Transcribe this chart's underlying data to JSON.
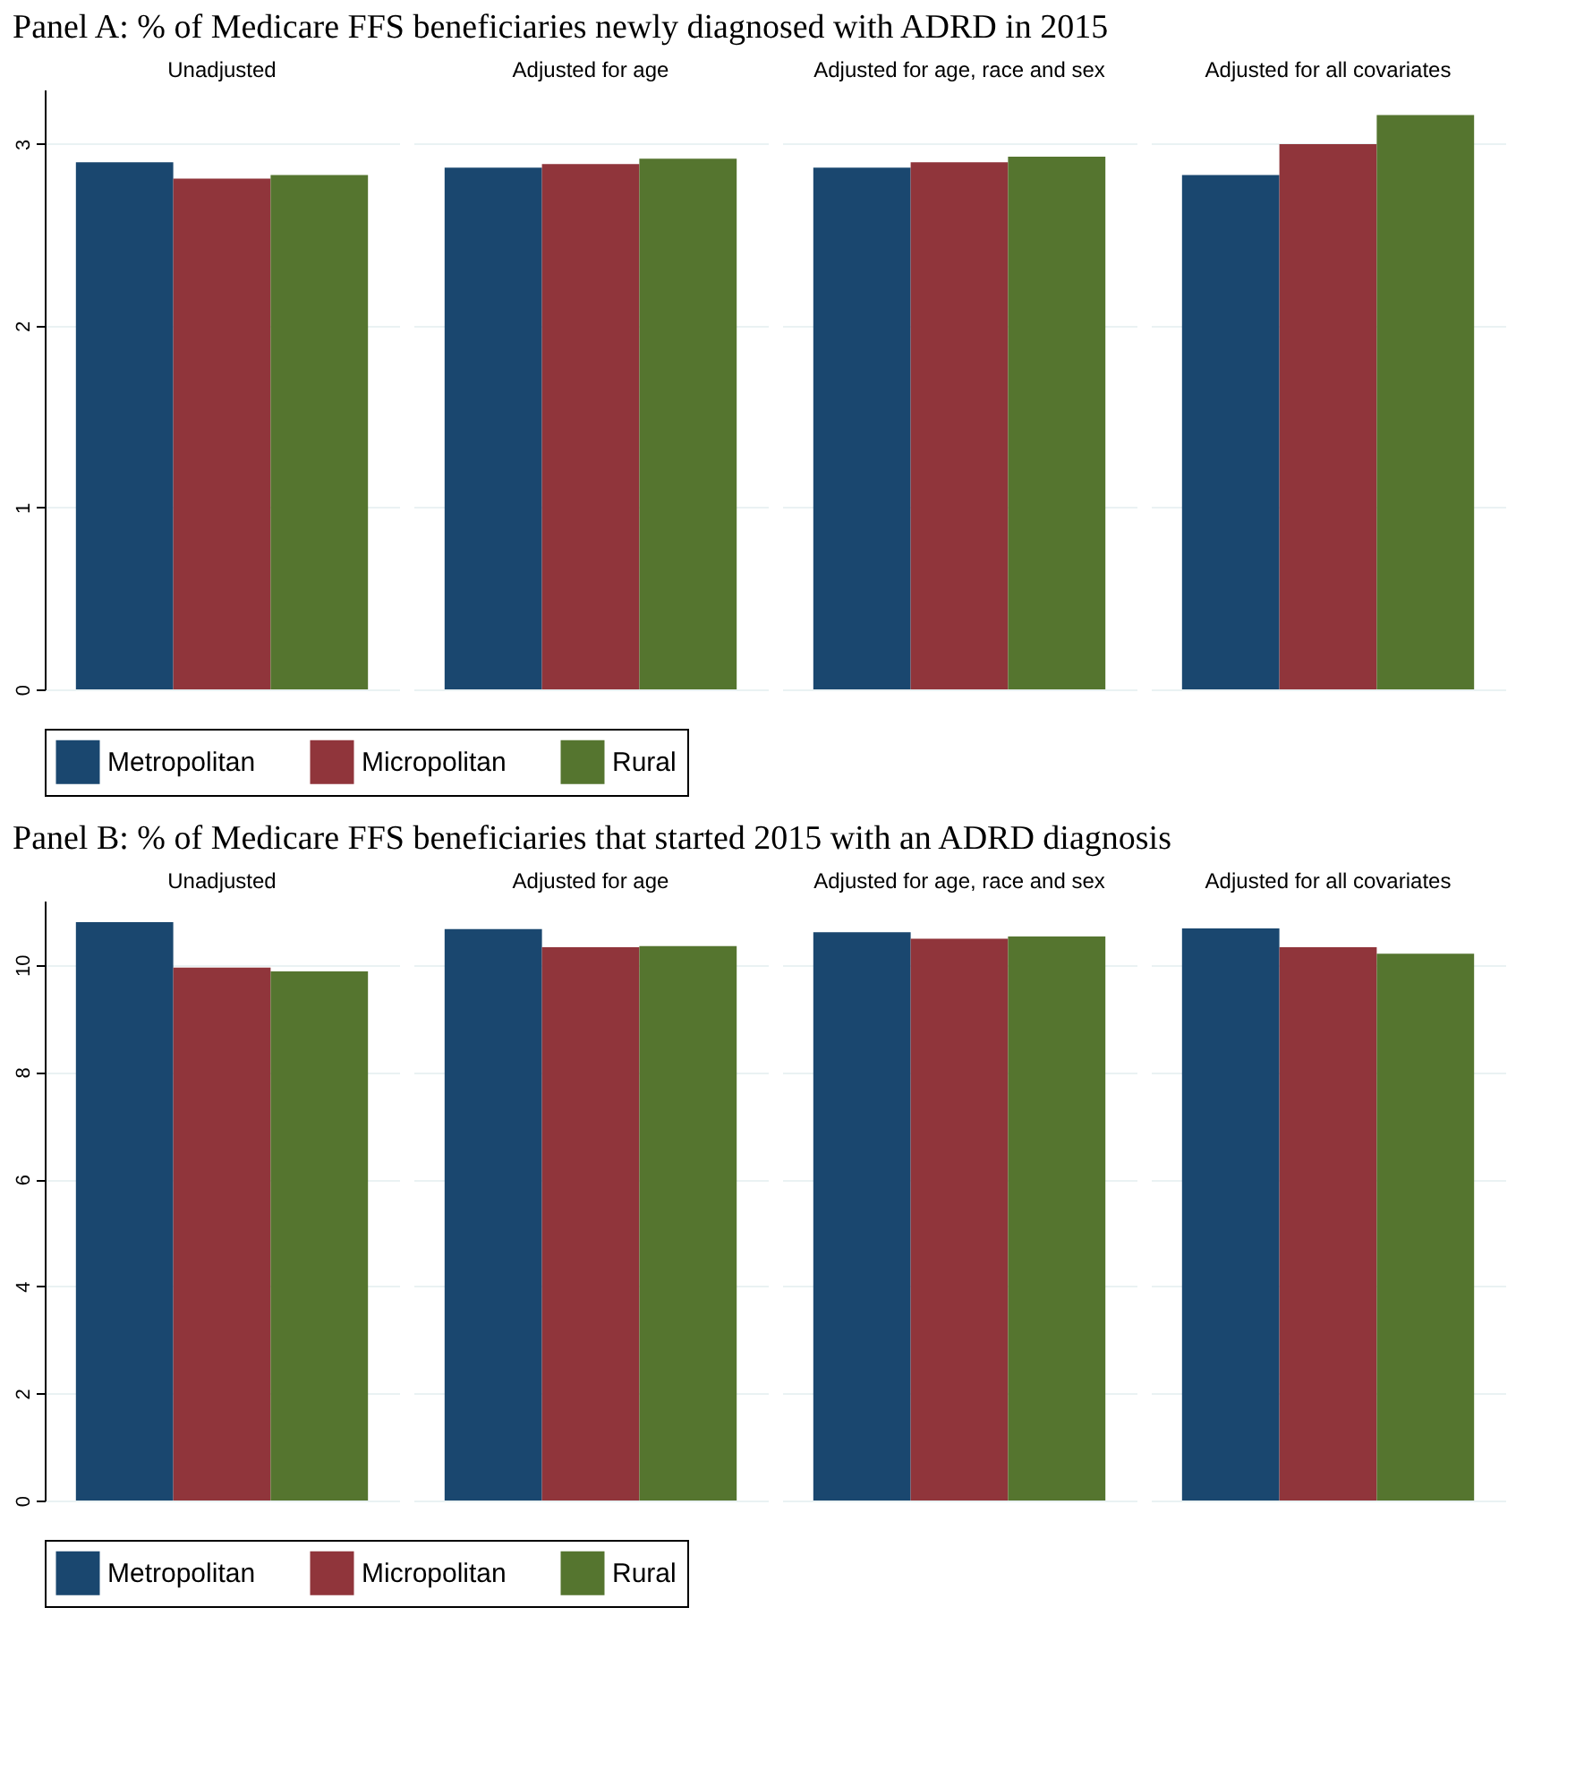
{
  "chart_data": [
    {
      "type": "bar",
      "title": "Panel A: % of Medicare FFS beneficiaries newly diagnosed with ADRD in 2015",
      "categories": [
        "Unadjusted",
        "Adjusted for age",
        "Adjusted for age, race and sex",
        "Adjusted for all covariates"
      ],
      "series": [
        {
          "name": "Metropolitan",
          "color": "#1a476f",
          "values": [
            2.9,
            2.87,
            2.87,
            2.83
          ]
        },
        {
          "name": "Micropolitan",
          "color": "#90353b",
          "values": [
            2.81,
            2.89,
            2.9,
            3.0
          ]
        },
        {
          "name": "Rural",
          "color": "#55752f",
          "values": [
            2.83,
            2.92,
            2.93,
            3.16
          ]
        }
      ],
      "ylim": [
        0,
        3.3
      ],
      "yticks": [
        0,
        1,
        2,
        3
      ],
      "grid": "y",
      "legend": "bottom"
    },
    {
      "type": "bar",
      "title": "Panel B: % of Medicare FFS beneficiaries that started 2015 with an ADRD diagnosis",
      "categories": [
        "Unadjusted",
        "Adjusted for age",
        "Adjusted for age, race and sex",
        "Adjusted for all covariates"
      ],
      "series": [
        {
          "name": "Metropolitan",
          "color": "#1a476f",
          "values": [
            10.8,
            10.67,
            10.61,
            10.68
          ]
        },
        {
          "name": "Micropolitan",
          "color": "#90353b",
          "values": [
            9.95,
            10.33,
            10.49,
            10.33
          ]
        },
        {
          "name": "Rural",
          "color": "#55752f",
          "values": [
            9.88,
            10.35,
            10.53,
            10.21
          ]
        }
      ],
      "ylim": [
        0,
        11.2
      ],
      "yticks": [
        0,
        2,
        4,
        6,
        8,
        10
      ],
      "grid": "y",
      "legend": "bottom"
    }
  ]
}
